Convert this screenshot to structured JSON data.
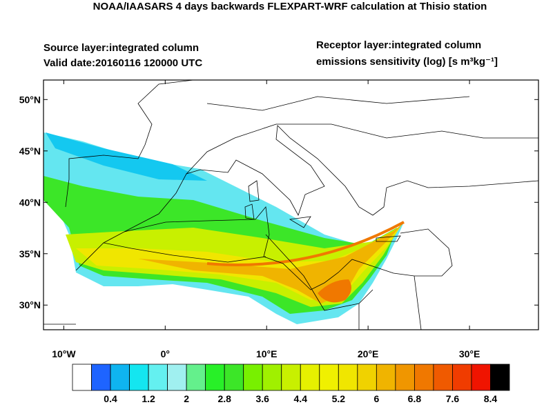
{
  "chart_data": {
    "type": "map",
    "title": "NOAA/IAASARS 4 days backwards FLEXPART-WRF calculation at Thisio station",
    "source_lines": [
      "Source layer:integrated column",
      "Valid date:20160116 120000 UTC"
    ],
    "receptor_lines": [
      "Receptor layer:integrated column",
      "emissions sensitivity (log) [s m³kg⁻¹]"
    ],
    "xlim": [
      -12,
      36.8
    ],
    "ylim": [
      27.6,
      51.9
    ],
    "xticks": [
      {
        "value": -10,
        "label": "10°W"
      },
      {
        "value": 0,
        "label": "0°"
      },
      {
        "value": 10,
        "label": "10°E"
      },
      {
        "value": 20,
        "label": "20°E"
      },
      {
        "value": 30,
        "label": "30°E"
      }
    ],
    "yticks": [
      {
        "value": 30,
        "label": "30°N"
      },
      {
        "value": 35,
        "label": "35°N"
      },
      {
        "value": 40,
        "label": "40°N"
      },
      {
        "value": 45,
        "label": "45°N"
      },
      {
        "value": 50,
        "label": "50°N"
      }
    ],
    "colorbar": {
      "colors": [
        "#ffffff",
        "#1e64ff",
        "#0fb4f0",
        "#14e6f0",
        "#64f0f0",
        "#a0f0f0",
        "#64f08c",
        "#28f028",
        "#3ce628",
        "#78f000",
        "#a0f000",
        "#c8f000",
        "#e6f000",
        "#f0f000",
        "#f0e600",
        "#f0d200",
        "#f0b400",
        "#f09600",
        "#f07800",
        "#f05a00",
        "#f03c00",
        "#f01400",
        "#000000"
      ],
      "labels": [
        0.4,
        1.2,
        2,
        2.8,
        3.6,
        4.4,
        5.2,
        6,
        6.8,
        7.6,
        8.4
      ]
    }
  }
}
